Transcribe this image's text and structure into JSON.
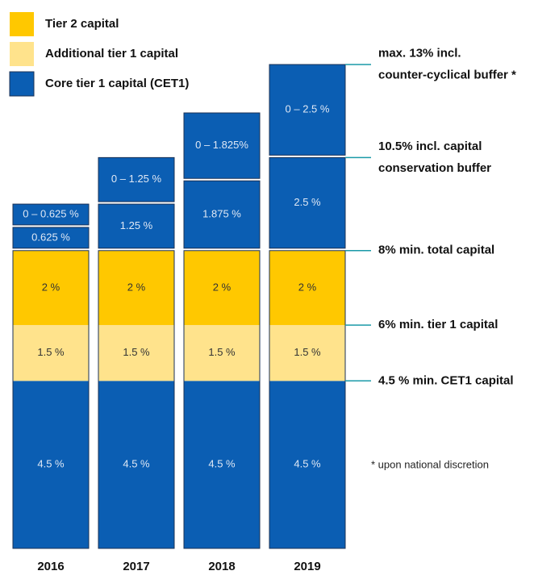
{
  "chart_data": {
    "type": "stacked_bar",
    "categories": [
      "2016",
      "2017",
      "2018",
      "2019"
    ],
    "ylim": [
      0,
      13
    ],
    "series": [
      {
        "name": "Core tier 1 capital (CET1)",
        "color": "#0b5eb3",
        "values": [
          4.5,
          4.5,
          4.5,
          4.5
        ],
        "value_labels": [
          "4.5 %",
          "4.5 %",
          "4.5 %",
          "4.5 %"
        ]
      },
      {
        "name": "Additional  tier 1 capital",
        "color": "#ffe38c",
        "values": [
          1.5,
          1.5,
          1.5,
          1.5
        ],
        "value_labels": [
          "1.5 %",
          "1.5 %",
          "1.5 %",
          "1.5 %"
        ]
      },
      {
        "name": "Tier 2 capital",
        "color": "#ffc800",
        "values": [
          2,
          2,
          2,
          2
        ],
        "value_labels": [
          "2 %",
          "2 %",
          "2 %",
          "2 %"
        ]
      }
    ],
    "buffers": [
      {
        "color": "#0b5eb3",
        "values": [
          0.625,
          1.25,
          1.875,
          2.5
        ],
        "value_labels": [
          "0.625 %",
          "1.25 %",
          "1.875 %",
          "2.5 %"
        ]
      },
      {
        "color": "#0b5eb3",
        "values": [
          0.625,
          1.25,
          1.825,
          2.5
        ],
        "value_labels": [
          "0 – 0.625 %",
          "0 – 1.25 %",
          "0 – 1.825%",
          "0 – 2.5 %"
        ]
      }
    ],
    "annotations": [
      {
        "value": 13,
        "lines": [
          "max. 13% incl.",
          "counter-cyclical buffer *"
        ]
      },
      {
        "value": 10.5,
        "lines": [
          "10.5% incl. capital",
          "conservation buffer"
        ]
      },
      {
        "value": 8,
        "lines": [
          "8% min. total capital"
        ]
      },
      {
        "value": 6,
        "lines": [
          "6% min. tier 1 capital"
        ]
      },
      {
        "value": 4.5,
        "lines": [
          "4.5 % min. CET1 capital"
        ]
      }
    ],
    "footnote": "* upon national discretion"
  }
}
